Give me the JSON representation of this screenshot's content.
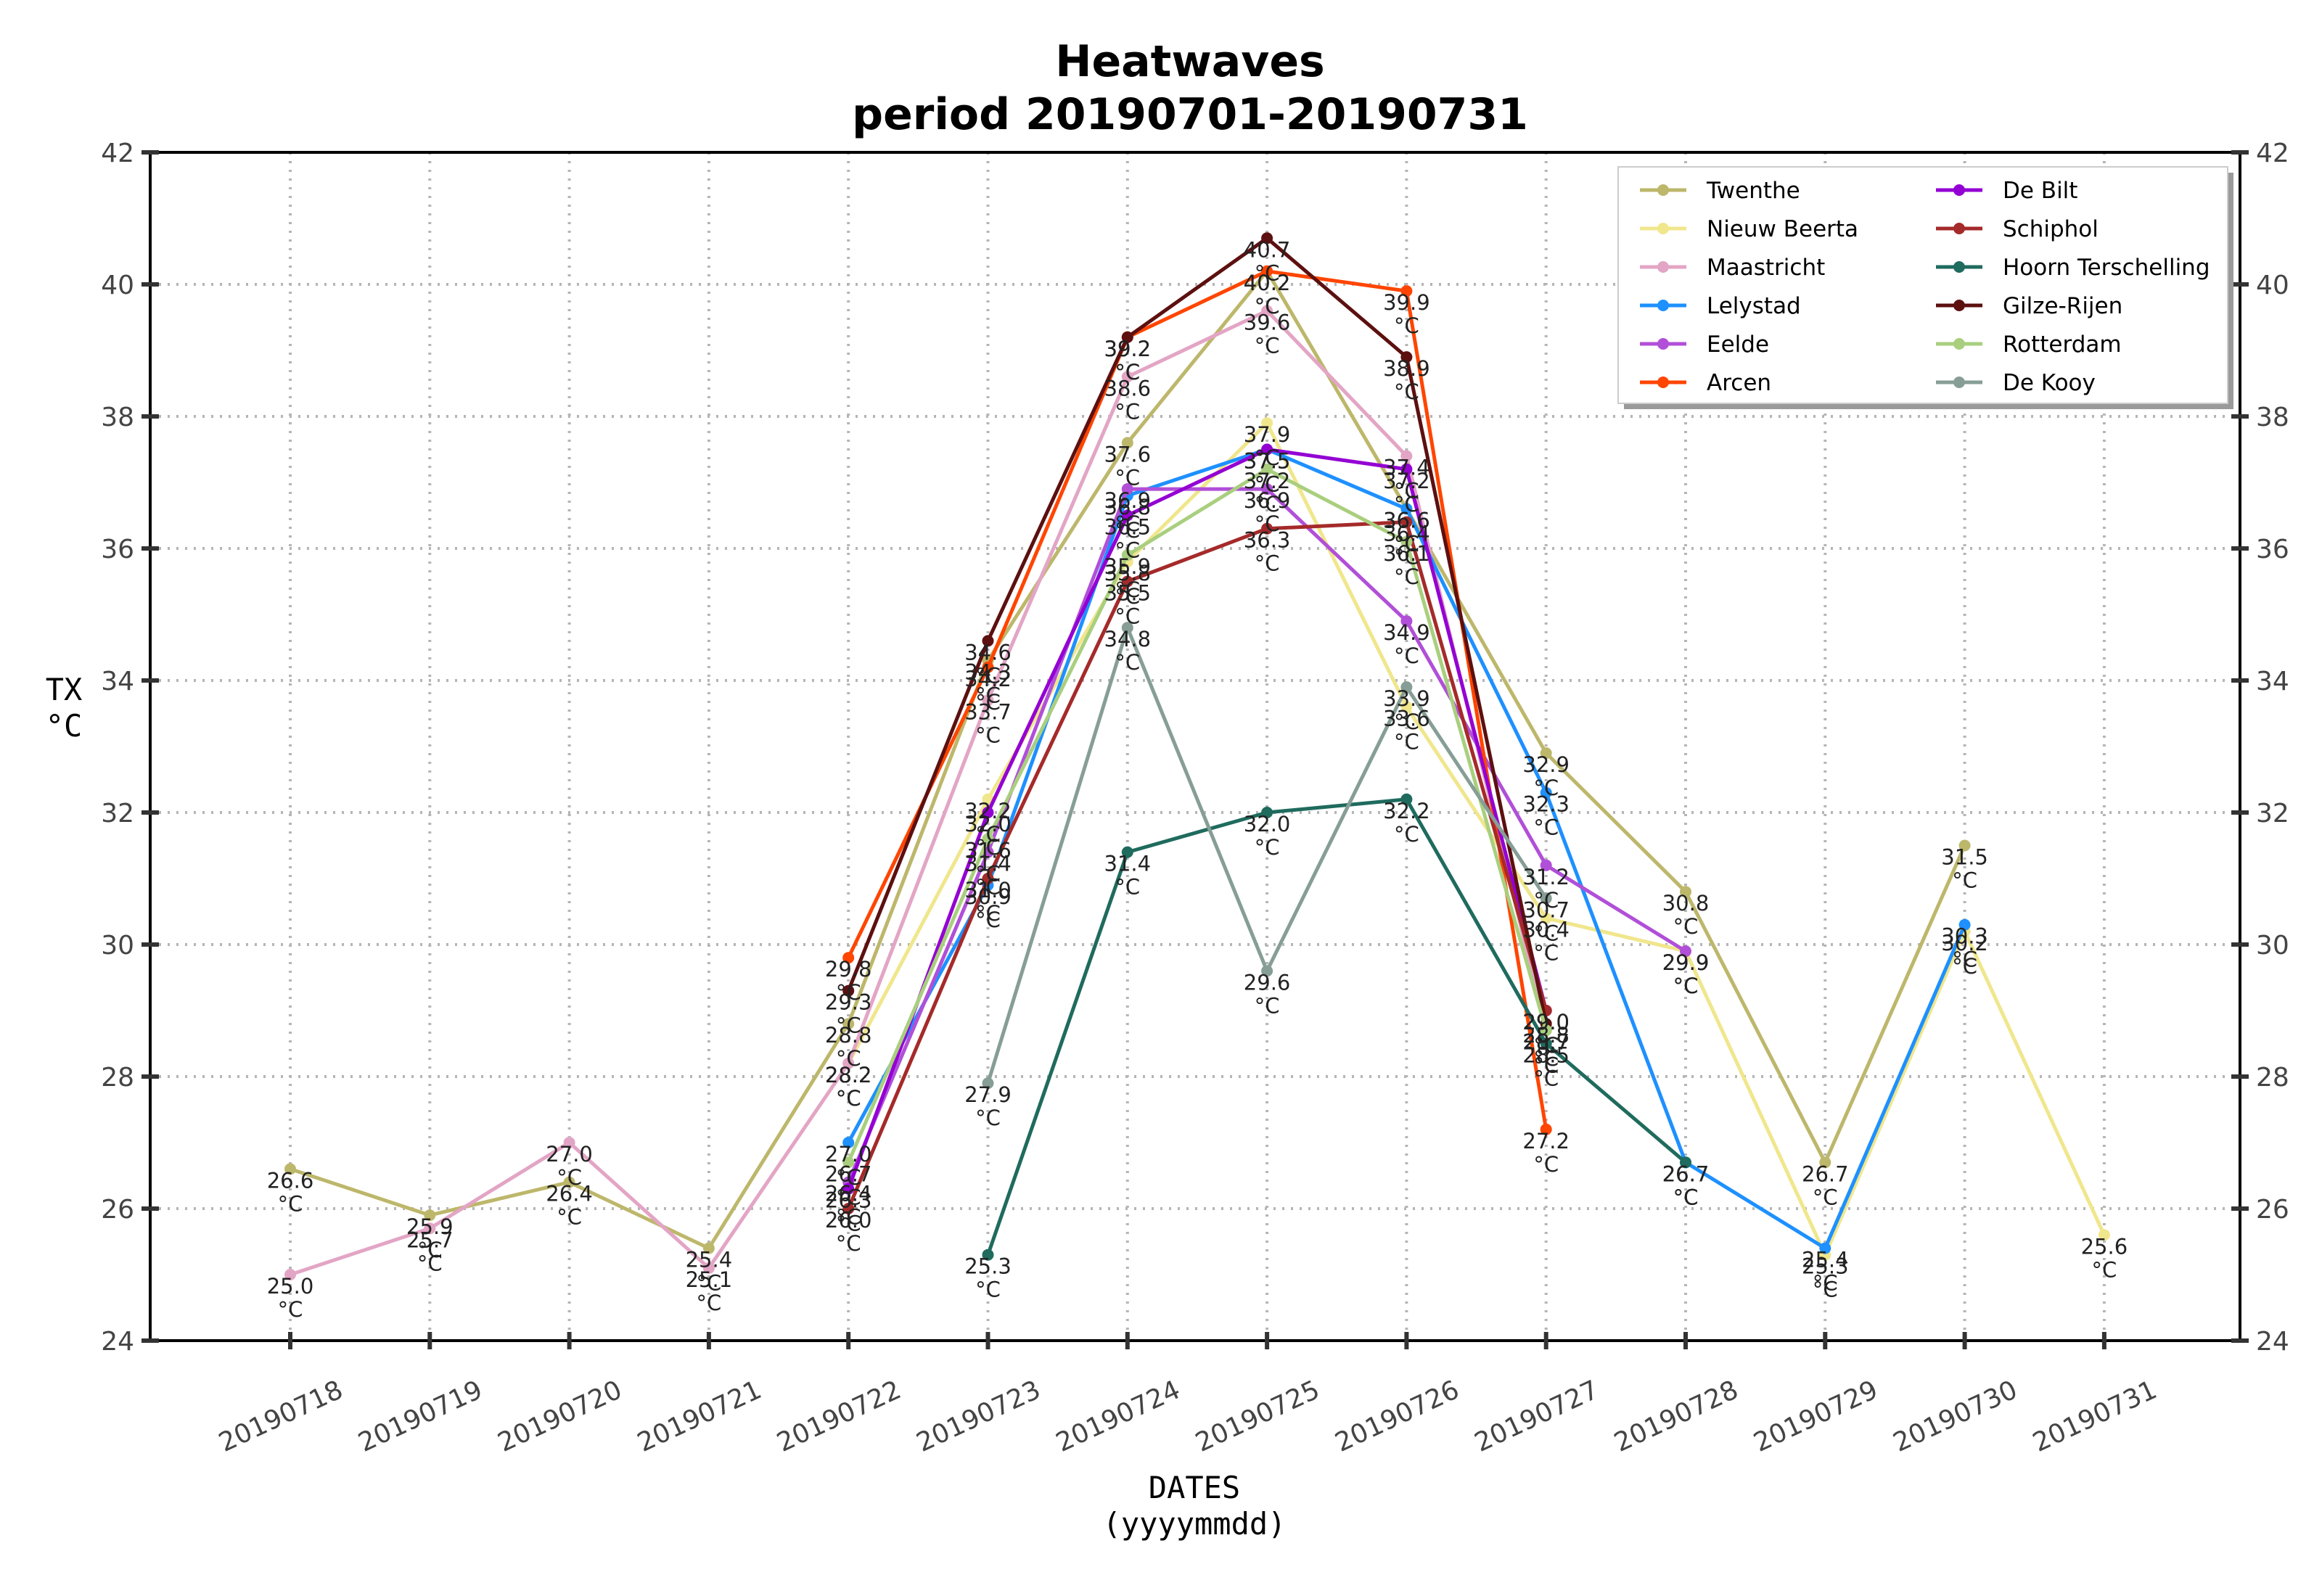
{
  "chart_data": {
    "type": "line",
    "title": "Heatwaves",
    "subtitle": "period 20190701-20190731",
    "xlabel": "DATES",
    "xlabel_sub": "(yyyymmdd)",
    "ylabel": "TX",
    "ylabel_unit": "°C",
    "unit_label": "°C",
    "ylim": [
      24,
      42
    ],
    "yticks": [
      "24",
      "26",
      "28",
      "30",
      "32",
      "34",
      "36",
      "38",
      "40",
      "42"
    ],
    "grid": true,
    "legend_position": "top-right",
    "categories": [
      "20190718",
      "20190719",
      "20190720",
      "20190721",
      "20190722",
      "20190723",
      "20190724",
      "20190725",
      "20190726",
      "20190727",
      "20190728",
      "20190729",
      "20190730",
      "20190731"
    ],
    "series": [
      {
        "name": "Twenthe",
        "color": "#bdb76b",
        "values": [
          26.6,
          25.9,
          26.4,
          25.4,
          28.8,
          34.3,
          37.6,
          40.2,
          36.6,
          32.9,
          30.8,
          26.7,
          31.5,
          null
        ]
      },
      {
        "name": "Nieuw Beerta",
        "color": "#f0e68c",
        "values": [
          null,
          null,
          null,
          null,
          28.2,
          32.2,
          35.8,
          37.9,
          33.6,
          30.4,
          29.9,
          25.3,
          30.2,
          25.6
        ]
      },
      {
        "name": "Maastricht",
        "color": "#e3a5c5",
        "values": [
          25.0,
          25.7,
          27.0,
          25.1,
          28.2,
          33.7,
          38.6,
          39.6,
          37.4,
          28.7,
          null,
          null,
          null,
          null
        ]
      },
      {
        "name": "Lelystad",
        "color": "#1e90ff",
        "values": [
          null,
          null,
          null,
          null,
          27.0,
          30.9,
          36.8,
          37.5,
          36.6,
          32.3,
          26.7,
          25.4,
          30.3,
          null
        ]
      },
      {
        "name": "Eelde",
        "color": "#b14fd8",
        "values": [
          null,
          null,
          null,
          null,
          26.4,
          31.4,
          36.9,
          36.9,
          34.9,
          31.2,
          29.9,
          null,
          null,
          null
        ]
      },
      {
        "name": "Arcen",
        "color": "#ff4500",
        "values": [
          null,
          null,
          null,
          null,
          29.8,
          34.2,
          39.2,
          40.2,
          39.9,
          27.2,
          null,
          null,
          null,
          null
        ]
      },
      {
        "name": "De Bilt",
        "color": "#9400d3",
        "values": [
          null,
          null,
          null,
          null,
          26.3,
          32.0,
          36.5,
          37.5,
          37.2,
          29.0,
          null,
          null,
          null,
          null
        ]
      },
      {
        "name": "Schiphol",
        "color": "#a52a2a",
        "values": [
          null,
          null,
          null,
          null,
          26.0,
          31.0,
          35.5,
          36.3,
          36.4,
          29.0,
          null,
          null,
          null,
          null
        ]
      },
      {
        "name": "Hoorn Terschelling",
        "color": "#1f6b5e",
        "values": [
          null,
          null,
          null,
          null,
          null,
          25.3,
          31.4,
          32.0,
          32.2,
          28.5,
          26.7,
          null,
          null,
          null
        ]
      },
      {
        "name": "Gilze-Rijen",
        "color": "#5c1010",
        "values": [
          null,
          null,
          null,
          null,
          29.3,
          34.6,
          39.2,
          40.7,
          38.9,
          28.8,
          null,
          null,
          null,
          null
        ]
      },
      {
        "name": "Rotterdam",
        "color": "#a9cf7e",
        "values": [
          null,
          null,
          null,
          null,
          26.7,
          31.6,
          35.9,
          37.2,
          36.1,
          28.7,
          null,
          null,
          null,
          null
        ]
      },
      {
        "name": "De Kooy",
        "color": "#869e96",
        "values": [
          null,
          null,
          null,
          null,
          null,
          27.9,
          34.8,
          29.6,
          33.9,
          30.7,
          null,
          null,
          null,
          null
        ]
      }
    ]
  }
}
